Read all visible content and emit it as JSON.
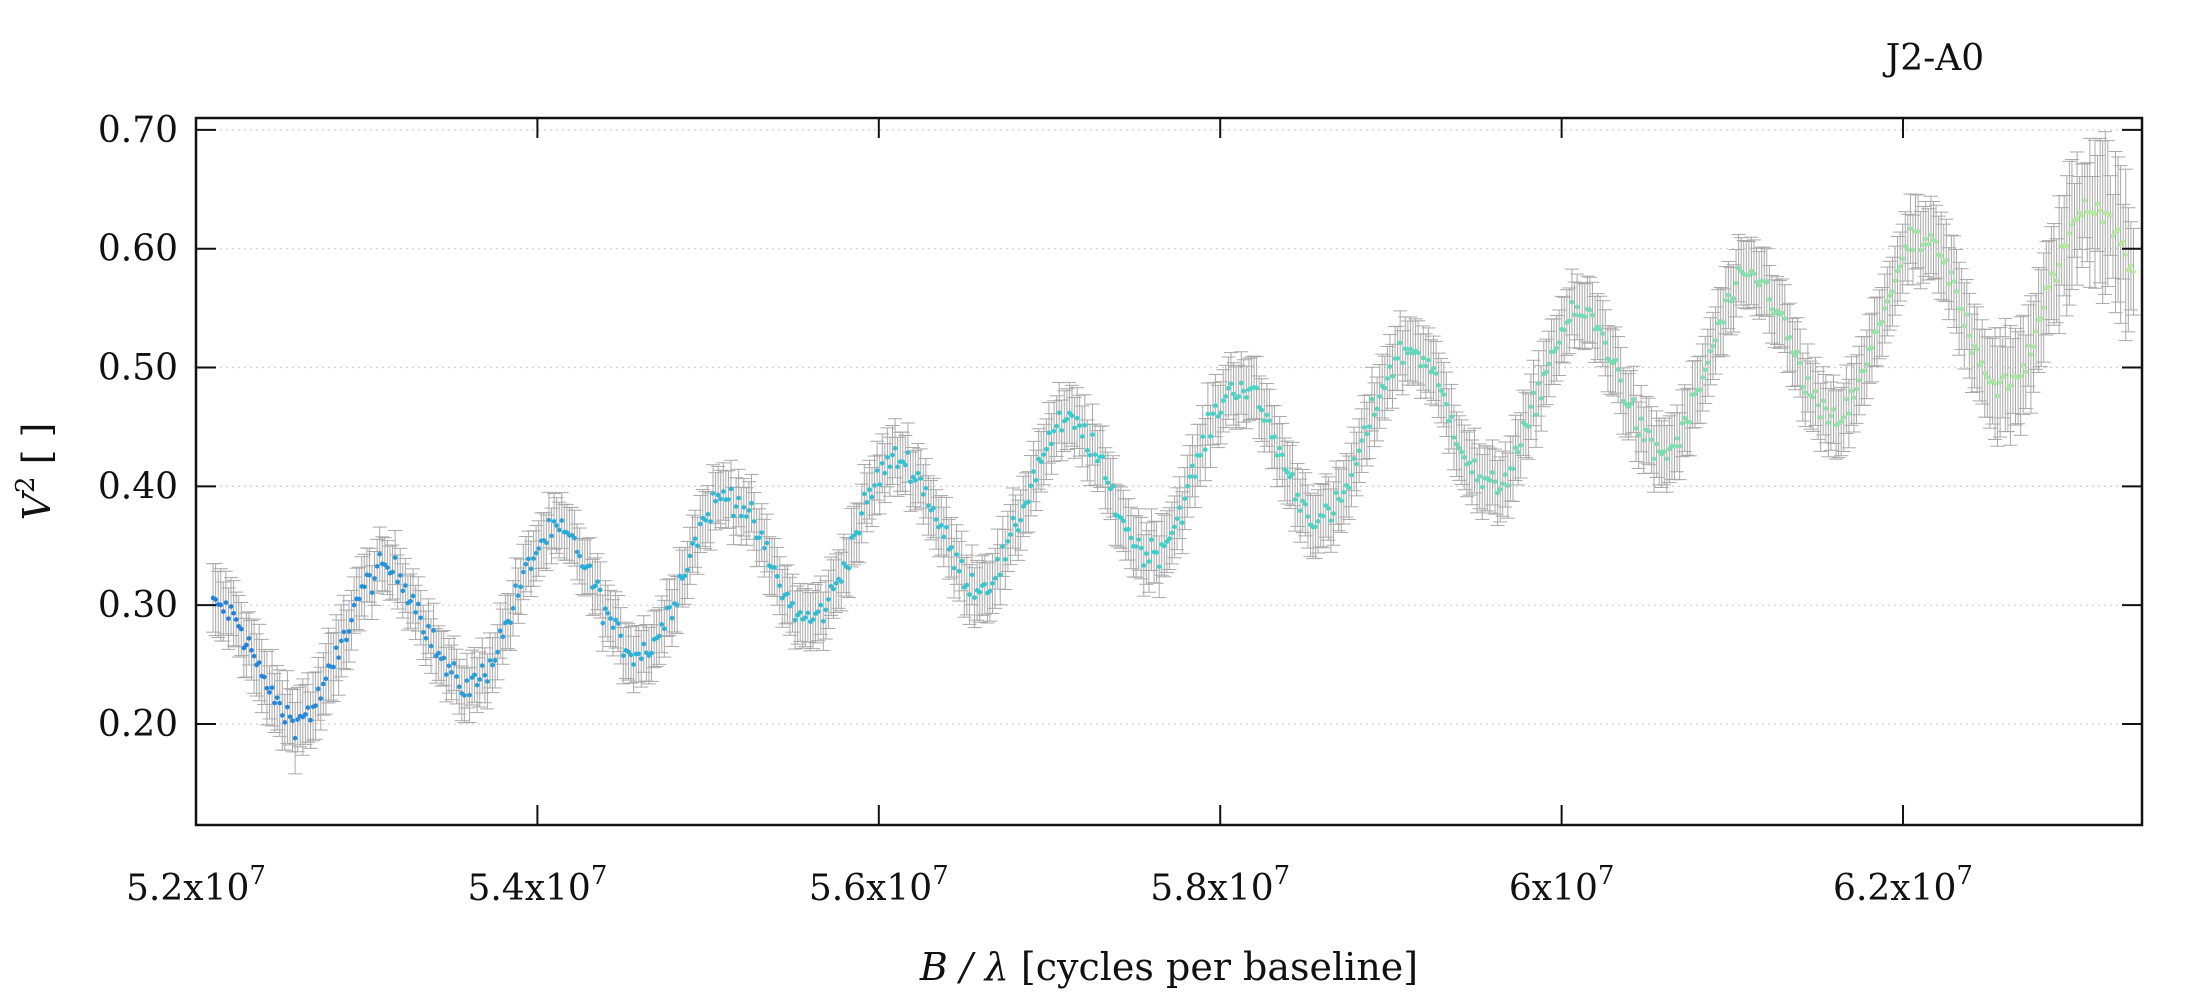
{
  "chart_data": {
    "type": "scatter",
    "title": "J2-A0",
    "ylabel_var": "V",
    "ylabel_sup": "2",
    "ylabel_unit": " [ ]",
    "xlabel_var": "B / λ",
    "xlabel_unit": " [cycles per baseline]",
    "xlim": [
      52000000,
      63400000
    ],
    "ylim": [
      0.115,
      0.71
    ],
    "grid": "horizontal-dotted",
    "xticks": [
      {
        "value": 52000000,
        "mantissa": "5.2x10",
        "exp": "7"
      },
      {
        "value": 54000000,
        "mantissa": "5.4x10",
        "exp": "7"
      },
      {
        "value": 56000000,
        "mantissa": "5.6x10",
        "exp": "7"
      },
      {
        "value": 58000000,
        "mantissa": "5.8x10",
        "exp": "7"
      },
      {
        "value": 60000000,
        "mantissa": "6x10",
        "exp": "7"
      },
      {
        "value": 62000000,
        "mantissa": "6.2x10",
        "exp": "7"
      }
    ],
    "yticks": [
      {
        "value": 0.2,
        "label": "0.20"
      },
      {
        "value": 0.3,
        "label": "0.30"
      },
      {
        "value": 0.4,
        "label": "0.40"
      },
      {
        "value": 0.5,
        "label": "0.50"
      },
      {
        "value": 0.6,
        "label": "0.60"
      },
      {
        "value": 0.7,
        "label": "0.70"
      }
    ],
    "x_range": [
      52100000,
      63350000
    ],
    "points": 750,
    "model": {
      "base_start": 0.245,
      "base_end": 0.575,
      "amp_start": 0.055,
      "amp_end": 0.07,
      "period": 1000000,
      "peak_at": 53100000
    },
    "errorbar": {
      "color": "#a8a8a8",
      "start": 0.022,
      "end": 0.03,
      "wide_end_from": 62000000,
      "wide_end_extra": 0.045
    },
    "colormap": [
      "#1f7fe0",
      "#2ab8d8",
      "#38d4cc",
      "#7be0b0",
      "#b8ec9c"
    ]
  }
}
